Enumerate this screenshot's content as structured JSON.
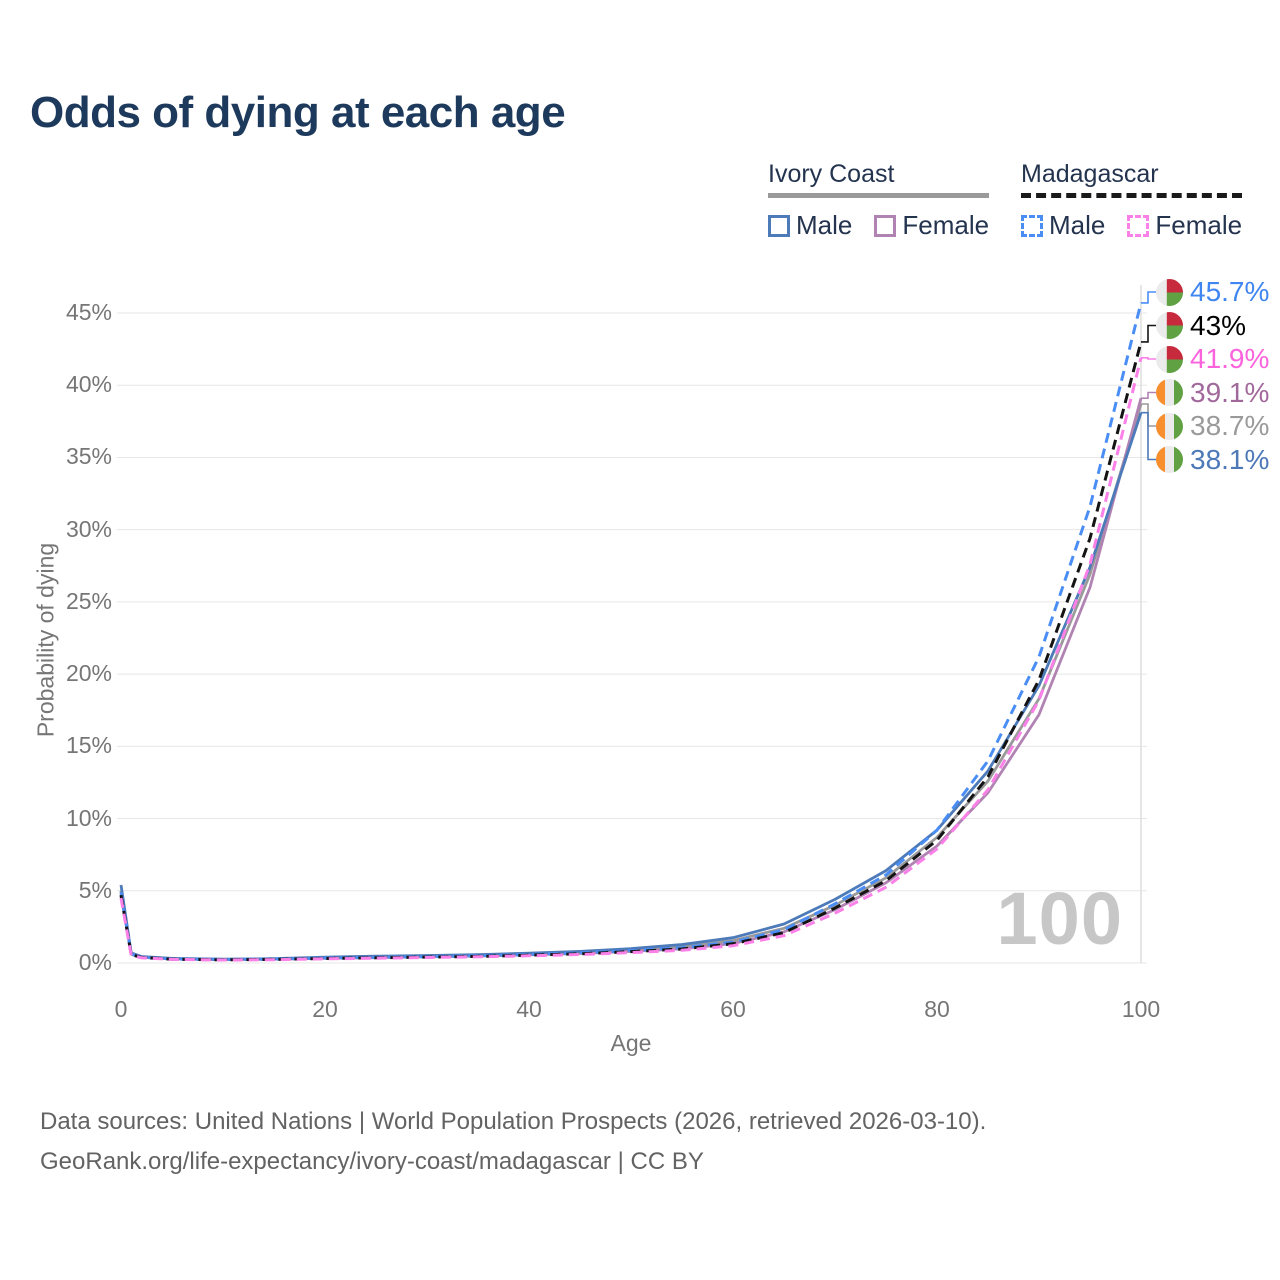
{
  "title": "Odds of dying at each age",
  "legend": {
    "groups": [
      {
        "label": "Ivory Coast",
        "line_style": "solid",
        "underline_color": "#9a9a9a",
        "items": [
          {
            "label": "Male",
            "color": "#4d7ab8",
            "dash": false
          },
          {
            "label": "Female",
            "color": "#b183b3",
            "dash": false
          }
        ]
      },
      {
        "label": "Madagascar",
        "line_style": "dashed",
        "underline_color": "#1a1a1a",
        "items": [
          {
            "label": "Male",
            "color": "#4a8ef5",
            "dash": true
          },
          {
            "label": "Female",
            "color": "#fb80e8",
            "dash": true
          }
        ]
      }
    ]
  },
  "chart_data": {
    "type": "line",
    "title": "Odds of dying at each age",
    "xlabel": "Age",
    "ylabel": "Probability of dying",
    "xlim": [
      0,
      100
    ],
    "ylim": [
      0,
      47
    ],
    "xticks": [
      0,
      20,
      40,
      60,
      80,
      100
    ],
    "ytick_values": [
      0,
      5,
      10,
      15,
      20,
      25,
      30,
      35,
      40,
      45
    ],
    "ytick_labels": [
      "0%",
      "5%",
      "10%",
      "15%",
      "20%",
      "25%",
      "30%",
      "35%",
      "40%",
      "45%"
    ],
    "grid": "horizontal",
    "legend_position": "top-right",
    "hover_age_label": "100",
    "x": [
      0,
      1,
      2,
      5,
      10,
      15,
      20,
      25,
      30,
      35,
      40,
      45,
      50,
      55,
      60,
      65,
      70,
      75,
      80,
      85,
      90,
      95,
      100
    ],
    "series": [
      {
        "id": "ivory-coast-both",
        "name": "Ivory Coast",
        "color": "#9a9a9a",
        "dash": false,
        "flag": "ivory-coast",
        "end_label": "38.7%",
        "end_label_color": "#9a9a9a",
        "end_value": 38.7,
        "values": [
          5.0,
          0.65,
          0.42,
          0.3,
          0.25,
          0.28,
          0.36,
          0.42,
          0.47,
          0.53,
          0.62,
          0.73,
          0.9,
          1.12,
          1.55,
          2.4,
          4.0,
          5.9,
          8.7,
          12.6,
          18.3,
          26.9,
          38.7
        ]
      },
      {
        "id": "ivory-coast-female",
        "name": "Ivory Coast Female",
        "color": "#b183b3",
        "dash": false,
        "flag": "ivory-coast",
        "end_label": "39.1%",
        "end_label_color": "#a1689b",
        "end_value": 39.1,
        "values": [
          4.7,
          0.6,
          0.4,
          0.28,
          0.23,
          0.26,
          0.32,
          0.37,
          0.42,
          0.48,
          0.56,
          0.66,
          0.8,
          0.98,
          1.35,
          2.15,
          3.7,
          5.55,
          8.1,
          11.8,
          17.2,
          26.0,
          39.1
        ]
      },
      {
        "id": "ivory-coast-male",
        "name": "Ivory Coast Male",
        "color": "#4d7ab8",
        "dash": false,
        "flag": "ivory-coast",
        "end_label": "38.1%",
        "end_label_color": "#4d79b8",
        "end_value": 38.1,
        "values": [
          5.4,
          0.7,
          0.45,
          0.32,
          0.27,
          0.3,
          0.4,
          0.47,
          0.52,
          0.58,
          0.68,
          0.8,
          1.0,
          1.28,
          1.75,
          2.7,
          4.4,
          6.4,
          9.2,
          13.3,
          19.2,
          27.4,
          38.1
        ]
      },
      {
        "id": "madagascar-male",
        "name": "Madagascar Male",
        "color": "#4a8ef5",
        "dash": true,
        "flag": "madagascar",
        "end_label": "45.7%",
        "end_label_color": "#3f86f0",
        "end_value": 45.7,
        "values": [
          4.9,
          0.62,
          0.4,
          0.28,
          0.24,
          0.27,
          0.34,
          0.39,
          0.44,
          0.5,
          0.59,
          0.7,
          0.86,
          1.06,
          1.45,
          2.3,
          4.1,
          6.1,
          9.2,
          14.0,
          21.2,
          31.6,
          45.7
        ]
      },
      {
        "id": "madagascar-both",
        "name": "Madagascar",
        "color": "#141414",
        "dash": true,
        "flag": "madagascar",
        "end_label": "43%",
        "end_label_color": "#000000",
        "end_value": 43.0,
        "values": [
          4.7,
          0.58,
          0.38,
          0.26,
          0.22,
          0.25,
          0.31,
          0.36,
          0.41,
          0.46,
          0.54,
          0.64,
          0.79,
          0.97,
          1.33,
          2.1,
          3.8,
          5.7,
          8.5,
          12.9,
          19.6,
          29.4,
          43.0
        ]
      },
      {
        "id": "madagascar-female",
        "name": "Madagascar Female",
        "color": "#fb80e8",
        "dash": true,
        "flag": "madagascar",
        "end_label": "41.9%",
        "end_label_color": "#fb63dd",
        "end_value": 41.9,
        "values": [
          4.5,
          0.55,
          0.36,
          0.25,
          0.21,
          0.23,
          0.29,
          0.33,
          0.38,
          0.43,
          0.5,
          0.59,
          0.72,
          0.88,
          1.2,
          1.9,
          3.45,
          5.25,
          7.9,
          12.0,
          18.2,
          27.6,
          41.9
        ]
      }
    ],
    "flag_colors": {
      "madagascar": {
        "left": "#ebebeb",
        "top_right": "#c62a3c",
        "bottom_right": "#5fa143"
      },
      "ivory-coast": {
        "left": "#f78f2e",
        "middle": "#ebebeb",
        "right": "#61a144"
      }
    }
  },
  "footer": {
    "line1": "Data sources: United Nations | World Population Prospects (2026, retrieved 2026-03-10).",
    "line2": "GeoRank.org/life-expectancy/ivory-coast/madagascar | CC BY"
  }
}
